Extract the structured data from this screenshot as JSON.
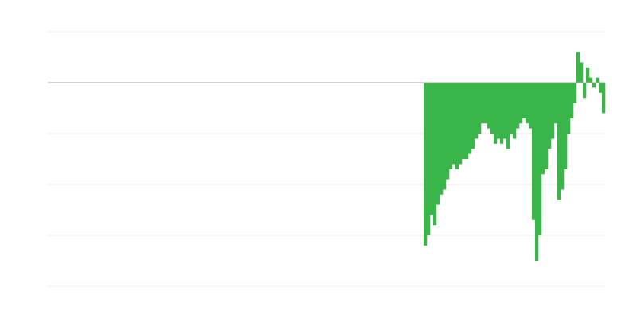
{
  "chart_data": {
    "type": "bar",
    "color": "#3ab54a",
    "grid": true,
    "xlim": [
      0,
      175
    ],
    "ylim": [
      -4,
      1
    ],
    "yticks": [
      -4,
      -3,
      -2,
      -1,
      0,
      1
    ],
    "x": [
      118,
      119,
      120,
      121,
      122,
      123,
      124,
      125,
      126,
      127,
      128,
      129,
      130,
      131,
      132,
      133,
      134,
      135,
      136,
      137,
      138,
      139,
      140,
      141,
      142,
      143,
      144,
      145,
      146,
      147,
      148,
      149,
      150,
      151,
      152,
      153,
      154,
      155,
      156,
      157,
      158,
      159,
      160,
      161,
      162,
      163,
      164,
      165,
      166,
      167,
      168,
      169,
      170,
      171,
      172,
      173,
      174
    ],
    "values": [
      -3.2,
      -3.0,
      -2.6,
      -2.8,
      -2.4,
      -2.2,
      -2.1,
      -1.9,
      -1.7,
      -1.6,
      -1.7,
      -1.6,
      -1.5,
      -1.5,
      -1.4,
      -1.3,
      -1.1,
      -1.0,
      -0.8,
      -0.8,
      -0.9,
      -1.0,
      -1.2,
      -1.1,
      -1.2,
      -1.1,
      -1.3,
      -1.0,
      -1.1,
      -0.9,
      -0.8,
      -0.7,
      -0.8,
      -0.9,
      -2.7,
      -3.5,
      -3.0,
      -1.8,
      -1.7,
      -1.3,
      -1.1,
      -0.8,
      -2.3,
      -2.1,
      -1.7,
      -1.0,
      -0.7,
      -0.4,
      0.6,
      0.4,
      -0.3,
      0.3,
      0.1,
      -0.1,
      0.1,
      -0.2,
      -0.6
    ]
  }
}
